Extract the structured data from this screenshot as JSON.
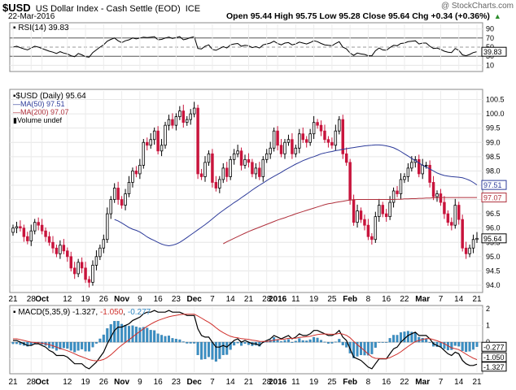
{
  "header": {
    "symbol": "$USD",
    "name": "US Dollar Index - Cash Settle (EOD)",
    "exchange": "ICE",
    "date": "22-Mar-2016",
    "watermark": "@ StockCharts.com",
    "ohlc_text": "Open 95.44  High 95.75  Low 95.28  Close 95.64  Chg +0.34 (+0.36%)",
    "chg_up_symbol": "▲"
  },
  "rsi_panel": {
    "label": "RSI(14) 39.83",
    "ticks": [
      "90",
      "70",
      "50",
      "30",
      "10"
    ],
    "tick_values": [
      90,
      70,
      50,
      30,
      10
    ],
    "value_badge": "39.83"
  },
  "price_panel": {
    "legend": [
      {
        "text": "$USD (Daily) 95.64",
        "color": "#000000"
      },
      {
        "text": "MA(50) 97.51",
        "color": "#2d3b9a"
      },
      {
        "text": "MA(200) 97.07",
        "color": "#b0303c"
      },
      {
        "text": "Volume undef",
        "color": "#000000"
      }
    ],
    "ticks": [
      "100.5",
      "100.0",
      "99.5",
      "99.0",
      "98.5",
      "98.0",
      "97.5",
      "97.0",
      "96.5",
      "96.0",
      "95.5",
      "95.0",
      "94.5",
      "94.0"
    ],
    "tick_values": [
      100.5,
      100.0,
      99.5,
      99.0,
      98.5,
      98.0,
      97.5,
      97.0,
      96.5,
      96.0,
      95.5,
      95.0,
      94.5,
      94.0
    ],
    "badges": [
      {
        "text": "97.51",
        "value": 97.51,
        "color": "#2d3b9a"
      },
      {
        "text": "97.07",
        "value": 97.07,
        "color": "#b0303c"
      },
      {
        "text": "95.64",
        "value": 95.64,
        "color": "#000000"
      }
    ]
  },
  "macd_panel": {
    "label_prefix": "MACD(5,35,9)",
    "macd_value": "-1.327",
    "signal_value": "-1.050",
    "hist_value": "-0.277",
    "ticks": [
      "2",
      "1",
      "0",
      "-1"
    ],
    "tick_values": [
      2,
      1,
      0,
      -1
    ],
    "badges": [
      {
        "text": "-0.277",
        "value": -0.277
      },
      {
        "text": "-1.050",
        "value": -1.05
      },
      {
        "text": "-1.327",
        "value": -1.327
      }
    ]
  },
  "x_axis": {
    "labels": [
      {
        "text": "21",
        "bold": false
      },
      {
        "text": "28",
        "bold": false
      },
      {
        "text": "Oct",
        "bold": true
      },
      {
        "text": "12",
        "bold": false
      },
      {
        "text": "19",
        "bold": false
      },
      {
        "text": "26",
        "bold": false
      },
      {
        "text": "Nov",
        "bold": true
      },
      {
        "text": "9",
        "bold": false
      },
      {
        "text": "16",
        "bold": false
      },
      {
        "text": "23",
        "bold": false
      },
      {
        "text": "Dec",
        "bold": true
      },
      {
        "text": "7",
        "bold": false
      },
      {
        "text": "14",
        "bold": false
      },
      {
        "text": "21",
        "bold": false
      },
      {
        "text": "28",
        "bold": false
      },
      {
        "text": "2016",
        "bold": true
      },
      {
        "text": "11",
        "bold": false
      },
      {
        "text": "19",
        "bold": false
      },
      {
        "text": "25",
        "bold": false
      },
      {
        "text": "Feb",
        "bold": true
      },
      {
        "text": "8",
        "bold": false
      },
      {
        "text": "16",
        "bold": false
      },
      {
        "text": "22",
        "bold": false
      },
      {
        "text": "Mar",
        "bold": true
      },
      {
        "text": "7",
        "bold": false
      },
      {
        "text": "14",
        "bold": false
      },
      {
        "text": "21",
        "bold": false
      }
    ],
    "label_bar": [
      0,
      5,
      8,
      15,
      20,
      25,
      30,
      35,
      40,
      45,
      50,
      55,
      60,
      65,
      70,
      73,
      78,
      83,
      88,
      93,
      98,
      103,
      108,
      113,
      118,
      123,
      128
    ]
  },
  "chart_data": {
    "type": "candlestick",
    "title": "$USD US Dollar Index - Cash Settle (EOD) ICE",
    "date_range": [
      "2015-09-21",
      "2016-03-22"
    ],
    "ylim": [
      93.8,
      100.8
    ],
    "close": [
      96.0,
      96.05,
      96.0,
      95.7,
      95.55,
      95.9,
      96.2,
      96.1,
      95.9,
      95.7,
      95.5,
      95.3,
      95.1,
      95.4,
      95.2,
      95.0,
      94.6,
      94.4,
      94.8,
      94.6,
      94.2,
      94.1,
      94.7,
      95.0,
      95.3,
      95.6,
      96.5,
      97.0,
      97.4,
      97.0,
      96.8,
      97.2,
      97.6,
      98.0,
      97.9,
      98.2,
      99.0,
      98.9,
      99.1,
      99.4,
      98.7,
      98.9,
      99.6,
      99.8,
      99.6,
      99.9,
      100.1,
      99.7,
      99.8,
      100.0,
      100.2,
      97.9,
      97.8,
      98.3,
      98.6,
      97.6,
      97.4,
      97.7,
      98.1,
      97.8,
      98.4,
      98.6,
      98.7,
      98.2,
      98.4,
      98.3,
      97.9,
      98.1,
      97.8,
      98.4,
      98.6,
      98.8,
      99.4,
      98.9,
      98.6,
      99.0,
      99.1,
      98.6,
      98.8,
      99.3,
      99.1,
      99.0,
      99.3,
      99.7,
      99.6,
      99.4,
      99.1,
      99.0,
      98.9,
      99.4,
      99.8,
      98.6,
      98.3,
      97.0,
      96.2,
      96.6,
      96.3,
      96.1,
      95.7,
      95.6,
      96.4,
      96.8,
      96.5,
      96.4,
      96.9,
      97.3,
      97.2,
      97.7,
      97.8,
      98.1,
      98.3,
      98.4,
      97.9,
      98.2,
      98.2,
      97.6,
      97.1,
      97.2,
      96.9,
      96.5,
      96.2,
      96.1,
      96.8,
      96.3,
      95.3,
      95.1,
      95.3,
      95.6,
      95.64
    ],
    "ma50": [
      96.3,
      96.25,
      96.18,
      96.1,
      96.02,
      95.96,
      95.92,
      95.86,
      95.78,
      95.69,
      95.62,
      95.56,
      95.5,
      95.44,
      95.4,
      95.38,
      95.4,
      95.44,
      95.5,
      95.58,
      95.67,
      95.76,
      95.85,
      95.94,
      96.03,
      96.12,
      96.22,
      96.32,
      96.43,
      96.53,
      96.62,
      96.71,
      96.8,
      96.89,
      96.97,
      97.06,
      97.15,
      97.24,
      97.33,
      97.42,
      97.5,
      97.58,
      97.66,
      97.74,
      97.81,
      97.88,
      97.95,
      98.03,
      98.1,
      98.17,
      98.24,
      98.3,
      98.36,
      98.41,
      98.46,
      98.5,
      98.55,
      98.6,
      98.63,
      98.66,
      98.68,
      98.71,
      98.73,
      98.76,
      98.78,
      98.8,
      98.82,
      98.84,
      98.86,
      98.88,
      98.89,
      98.9,
      98.91,
      98.91,
      98.9,
      98.88,
      98.85,
      98.81,
      98.75,
      98.68,
      98.6,
      98.52,
      98.44,
      98.36,
      98.28,
      98.2,
      98.13,
      98.07,
      98.0,
      97.93,
      97.88,
      97.84,
      97.82,
      97.8,
      97.79,
      97.78,
      97.76,
      97.72,
      97.67,
      97.6,
      97.51
    ],
    "ma200": [
      95.45,
      95.52,
      95.58,
      95.64,
      95.7,
      95.76,
      95.82,
      95.88,
      95.93,
      95.98,
      96.03,
      96.08,
      96.13,
      96.18,
      96.23,
      96.28,
      96.32,
      96.36,
      96.41,
      96.45,
      96.5,
      96.54,
      96.58,
      96.62,
      96.66,
      96.7,
      96.74,
      96.78,
      96.82,
      96.85,
      96.87,
      96.9,
      96.92,
      96.94,
      96.96,
      96.98,
      96.99,
      97.0,
      97.0,
      97.0,
      97.0,
      97.0,
      97.0,
      97.0,
      97.0,
      97.0,
      97.0,
      97.0,
      97.01,
      97.01,
      97.02,
      97.02,
      97.03,
      97.03,
      97.04,
      97.04,
      97.05,
      97.05,
      97.06,
      97.06,
      97.07,
      97.07,
      97.07,
      97.07,
      97.07,
      97.07,
      97.07,
      97.07,
      97.07,
      97.07,
      97.07
    ],
    "rsi": [
      50,
      52,
      49,
      46,
      44,
      48,
      52,
      50,
      47,
      44,
      41,
      39,
      36,
      40,
      37,
      35,
      31,
      29,
      36,
      33,
      29,
      28,
      38,
      44,
      50,
      55,
      63,
      67,
      70,
      64,
      60,
      64,
      66,
      70,
      68,
      70,
      72,
      71,
      72,
      73,
      66,
      67,
      70,
      72,
      69,
      71,
      73,
      66,
      68,
      71,
      73,
      47,
      46,
      52,
      55,
      45,
      43,
      47,
      51,
      48,
      55,
      57,
      58,
      52,
      54,
      53,
      49,
      51,
      48,
      55,
      57,
      59,
      63,
      58,
      55,
      59,
      60,
      55,
      57,
      61,
      59,
      57,
      60,
      64,
      62,
      58,
      55,
      54,
      53,
      58,
      62,
      50,
      46,
      37,
      32,
      37,
      35,
      34,
      31,
      31,
      42,
      48,
      44,
      43,
      49,
      54,
      53,
      58,
      59,
      62,
      63,
      64,
      57,
      59,
      59,
      52,
      47,
      48,
      45,
      41,
      39,
      38,
      47,
      43,
      33,
      31,
      34,
      38,
      40
    ],
    "macd": [
      0.1,
      0.1,
      0.0,
      -0.1,
      -0.2,
      -0.2,
      -0.1,
      -0.1,
      -0.2,
      -0.3,
      -0.5,
      -0.6,
      -0.8,
      -0.8,
      -0.8,
      -0.9,
      -1.1,
      -1.3,
      -1.3,
      -1.3,
      -1.5,
      -1.6,
      -1.4,
      -1.2,
      -0.9,
      -0.6,
      -0.1,
      0.3,
      0.7,
      0.9,
      0.9,
      1.0,
      1.1,
      1.3,
      1.4,
      1.5,
      1.7,
      1.8,
      1.8,
      1.9,
      1.8,
      1.8,
      1.8,
      1.9,
      1.8,
      1.8,
      1.8,
      1.7,
      1.6,
      1.6,
      1.6,
      0.8,
      0.4,
      0.3,
      0.3,
      0.0,
      -0.3,
      -0.3,
      -0.2,
      -0.3,
      -0.1,
      0.1,
      0.2,
      0.0,
      0.1,
      0.0,
      -0.1,
      -0.1,
      -0.2,
      0.0,
      0.1,
      0.2,
      0.4,
      0.3,
      0.2,
      0.3,
      0.4,
      0.2,
      0.3,
      0.5,
      0.4,
      0.4,
      0.5,
      0.7,
      0.7,
      0.6,
      0.5,
      0.4,
      0.4,
      0.5,
      0.7,
      0.3,
      0.1,
      -0.4,
      -0.9,
      -1.0,
      -1.1,
      -1.3,
      -1.5,
      -1.6,
      -1.3,
      -1.0,
      -1.0,
      -1.0,
      -0.7,
      -0.4,
      -0.3,
      0.0,
      0.2,
      0.4,
      0.5,
      0.6,
      0.4,
      0.4,
      0.4,
      0.2,
      -0.1,
      -0.2,
      -0.3,
      -0.5,
      -0.7,
      -0.8,
      -0.6,
      -0.7,
      -1.1,
      -1.3,
      -1.4,
      -1.4,
      -1.327
    ],
    "signal": [
      0.2,
      0.2,
      0.15,
      0.1,
      0.05,
      0.0,
      -0.02,
      -0.04,
      -0.07,
      -0.1,
      -0.15,
      -0.22,
      -0.3,
      -0.38,
      -0.45,
      -0.52,
      -0.6,
      -0.7,
      -0.8,
      -0.88,
      -0.96,
      -1.05,
      -1.1,
      -1.12,
      -1.1,
      -1.04,
      -0.92,
      -0.76,
      -0.56,
      -0.36,
      -0.18,
      -0.02,
      0.14,
      0.31,
      0.48,
      0.64,
      0.8,
      0.95,
      1.08,
      1.2,
      1.3,
      1.38,
      1.45,
      1.52,
      1.57,
      1.61,
      1.65,
      1.67,
      1.67,
      1.67,
      1.67,
      1.57,
      1.44,
      1.31,
      1.19,
      1.04,
      0.86,
      0.7,
      0.57,
      0.45,
      0.35,
      0.29,
      0.26,
      0.21,
      0.19,
      0.16,
      0.12,
      0.09,
      0.05,
      0.04,
      0.05,
      0.07,
      0.12,
      0.15,
      0.16,
      0.19,
      0.23,
      0.23,
      0.24,
      0.28,
      0.3,
      0.32,
      0.35,
      0.41,
      0.45,
      0.48,
      0.49,
      0.48,
      0.47,
      0.48,
      0.52,
      0.48,
      0.41,
      0.26,
      0.05,
      -0.15,
      -0.33,
      -0.52,
      -0.71,
      -0.89,
      -0.97,
      -0.98,
      -0.98,
      -0.99,
      -0.93,
      -0.82,
      -0.72,
      -0.58,
      -0.42,
      -0.26,
      -0.11,
      0.03,
      0.1,
      0.16,
      0.21,
      0.21,
      0.15,
      0.08,
      0.0,
      -0.1,
      -0.22,
      -0.34,
      -0.39,
      -0.45,
      -0.58,
      -0.72,
      -0.85,
      -0.96,
      -1.05
    ],
    "annotation": "Mar-22: O 95.44 H 95.75 L 95.28 C 95.64"
  }
}
